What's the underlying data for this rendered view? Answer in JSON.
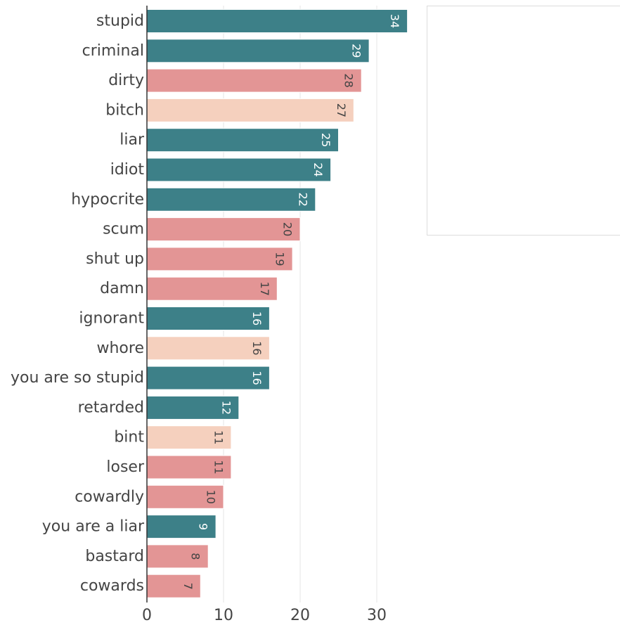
{
  "chart_data": {
    "type": "bar",
    "orientation": "horizontal",
    "categories": [
      "stupid",
      "criminal",
      "dirty",
      "bitch",
      "liar",
      "idiot",
      "hypocrite",
      "scum",
      "shut up",
      "damn",
      "ignorant",
      "whore",
      "you are so stupid",
      "retarded",
      "bint",
      "loser",
      "cowardly",
      "you are a liar",
      "bastard",
      "cowards"
    ],
    "values": [
      34,
      29,
      28,
      27,
      25,
      24,
      22,
      20,
      19,
      17,
      16,
      16,
      16,
      12,
      11,
      11,
      10,
      9,
      8,
      7
    ],
    "groups": [
      "teal",
      "teal",
      "pink",
      "peach",
      "teal",
      "teal",
      "teal",
      "pink",
      "pink",
      "pink",
      "teal",
      "peach",
      "teal",
      "teal",
      "peach",
      "pink",
      "pink",
      "teal",
      "pink",
      "pink"
    ],
    "colors": {
      "teal": "#3d8088",
      "pink": "#e39595",
      "peach": "#f5d0be"
    },
    "label_colors": {
      "teal": "#ffffff",
      "pink": "#444444",
      "peach": "#444444"
    },
    "xticks": [
      0,
      10,
      20,
      30
    ],
    "xlim": [
      0,
      35
    ],
    "grid": true,
    "legend_position": "top-right",
    "title": "",
    "xlabel": "",
    "ylabel": ""
  }
}
